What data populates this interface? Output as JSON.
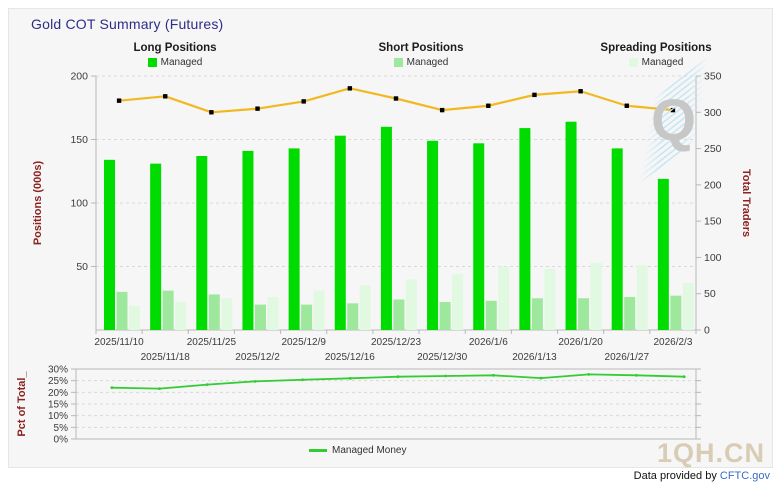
{
  "header": {
    "title": "Gold COT Summary (Futures)"
  },
  "legends": {
    "long": {
      "title": "Long Positions",
      "item": "Managed",
      "color": "#00db00"
    },
    "short": {
      "title": "Short Positions",
      "item": "Managed",
      "color": "#9de89d"
    },
    "spreading": {
      "title": "Spreading Positions",
      "item": "Managed",
      "color": "#e1f8e1"
    }
  },
  "chart_data": [
    {
      "type": "bar",
      "title": "Gold COT Summary (Futures)",
      "categories": [
        "2025/11/10",
        "2025/11/18",
        "2025/11/25",
        "2025/12/2",
        "2025/12/9",
        "2025/12/16",
        "2025/12/23",
        "2025/12/30",
        "2026/1/6",
        "2026/1/13",
        "2026/1/20",
        "2026/1/27",
        "2026/2/3"
      ],
      "series": [
        {
          "name": "Long Managed",
          "type": "bar",
          "color": "#00db00",
          "values": [
            134,
            131,
            137,
            141,
            143,
            153,
            160,
            149,
            147,
            159,
            164,
            143,
            119
          ]
        },
        {
          "name": "Short Managed",
          "type": "bar",
          "color": "#9de89d",
          "values": [
            30,
            31,
            28,
            20,
            20,
            21,
            24,
            22,
            23,
            25,
            25,
            26,
            27
          ]
        },
        {
          "name": "Spreading Managed",
          "type": "bar",
          "color": "#e1f8e1",
          "values": [
            19,
            22,
            25,
            26,
            31,
            35,
            40,
            44,
            50,
            48,
            53,
            51,
            37
          ]
        },
        {
          "name": "Total Traders",
          "type": "line",
          "axis": "right",
          "color": "#f1b820",
          "marker_color": "#000000",
          "values": [
            316,
            322,
            300,
            305,
            315,
            333,
            319,
            303,
            309,
            324,
            329,
            309,
            303
          ]
        }
      ],
      "ylabel_left": "Positions (000s)",
      "ylabel_right": "Total Traders",
      "ylim_left": [
        0,
        200
      ],
      "yticks_left": [
        50,
        100,
        150,
        200
      ],
      "ylim_right": [
        0,
        350
      ],
      "yticks_right": [
        0,
        50,
        100,
        150,
        200,
        250,
        300,
        350
      ],
      "grid": "horizontal-dashed",
      "legend_position": "top"
    },
    {
      "type": "line",
      "categories": [
        "2025/11/10",
        "2025/11/18",
        "2025/11/25",
        "2025/12/2",
        "2025/12/9",
        "2025/12/16",
        "2025/12/23",
        "2025/12/30",
        "2026/1/6",
        "2026/1/13",
        "2026/1/20",
        "2026/1/27",
        "2026/2/3"
      ],
      "series": [
        {
          "name": "Managed Money",
          "type": "line",
          "color": "#33cc33",
          "values": [
            22.0,
            21.6,
            23.3,
            24.7,
            25.4,
            26.0,
            26.7,
            27.0,
            27.3,
            26.1,
            27.7,
            27.3,
            26.7
          ]
        }
      ],
      "ylabel": "Pct of Total_",
      "ylim": [
        0,
        30
      ],
      "yticks_pct": [
        "0%",
        "5%",
        "10%",
        "15%",
        "20%",
        "25%",
        "30%"
      ],
      "grid": "horizontal-dashed",
      "legend_position": "bottom"
    }
  ],
  "style_colors": {
    "grid": "#d9d9d9",
    "axis": "#b8b8b8",
    "tick_text": "#3c3c3c",
    "axis_label": "#8b2323",
    "title": "#2d2d86",
    "link": "#3a6bc4",
    "watermark": "#d8cdb4"
  },
  "watermarks": {
    "logo_q": "Q",
    "site": "1QH.CN"
  },
  "footer": {
    "prefix": "Data provided by ",
    "link": "CFTC.gov"
  }
}
